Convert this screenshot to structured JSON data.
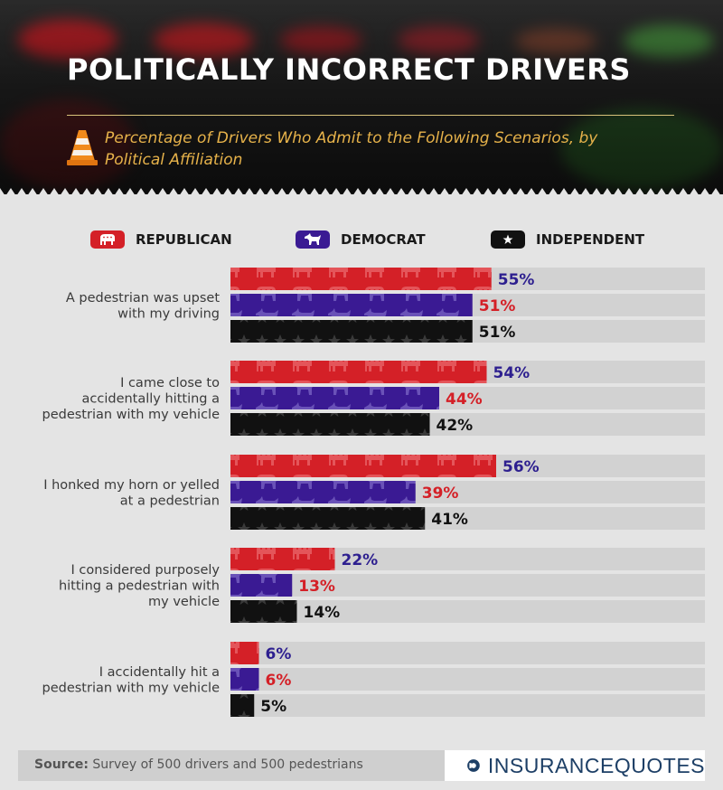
{
  "header": {
    "title": "POLITICALLY INCORRECT DRIVERS",
    "subtitle": "Percentage of Drivers Who Admit to the Following Scenarios, by Political Affiliation",
    "icon": "traffic-cone-icon"
  },
  "legend": [
    {
      "label": "REPUBLICAN",
      "icon": "elephant-icon",
      "color": "#d42027"
    },
    {
      "label": "DEMOCRAT",
      "icon": "donkey-icon",
      "color": "#3a1a93"
    },
    {
      "label": "INDEPENDENT",
      "icon": "star-icon",
      "color": "#111111"
    }
  ],
  "chart_data": {
    "type": "bar",
    "orientation": "horizontal",
    "categories": [
      [
        "A pedestrian was upset",
        "with my driving"
      ],
      [
        "I came close to",
        "accidentally hitting a",
        "pedestrian with my vehicle"
      ],
      [
        "I honked my horn or yelled",
        "at a pedestrian"
      ],
      [
        "I considered purposely",
        "hitting a pedestrian with",
        "my vehicle"
      ],
      [
        "I accidentally hit a",
        "pedestrian with my vehicle"
      ]
    ],
    "series": [
      {
        "name": "REPUBLICAN",
        "values": [
          55,
          54,
          56,
          22,
          6
        ],
        "color": "#d42027",
        "label_color": "#2d1f8f"
      },
      {
        "name": "DEMOCRAT",
        "values": [
          51,
          44,
          39,
          13,
          6
        ],
        "color": "#3a1a93",
        "label_color": "#d42027"
      },
      {
        "name": "INDEPENDENT",
        "values": [
          51,
          42,
          41,
          14,
          5
        ],
        "color": "#111111",
        "label_color": "#111111"
      }
    ],
    "value_suffix": "%",
    "xlim": [
      0,
      100
    ],
    "grid": false
  },
  "footer": {
    "source_label": "Source:",
    "source_text": "Survey of 500 drivers and 500 pedestrians",
    "logo_part1": "INSURANCE",
    "logo_part2": "QUOTES",
    "logo_color": "#1d3f66"
  }
}
